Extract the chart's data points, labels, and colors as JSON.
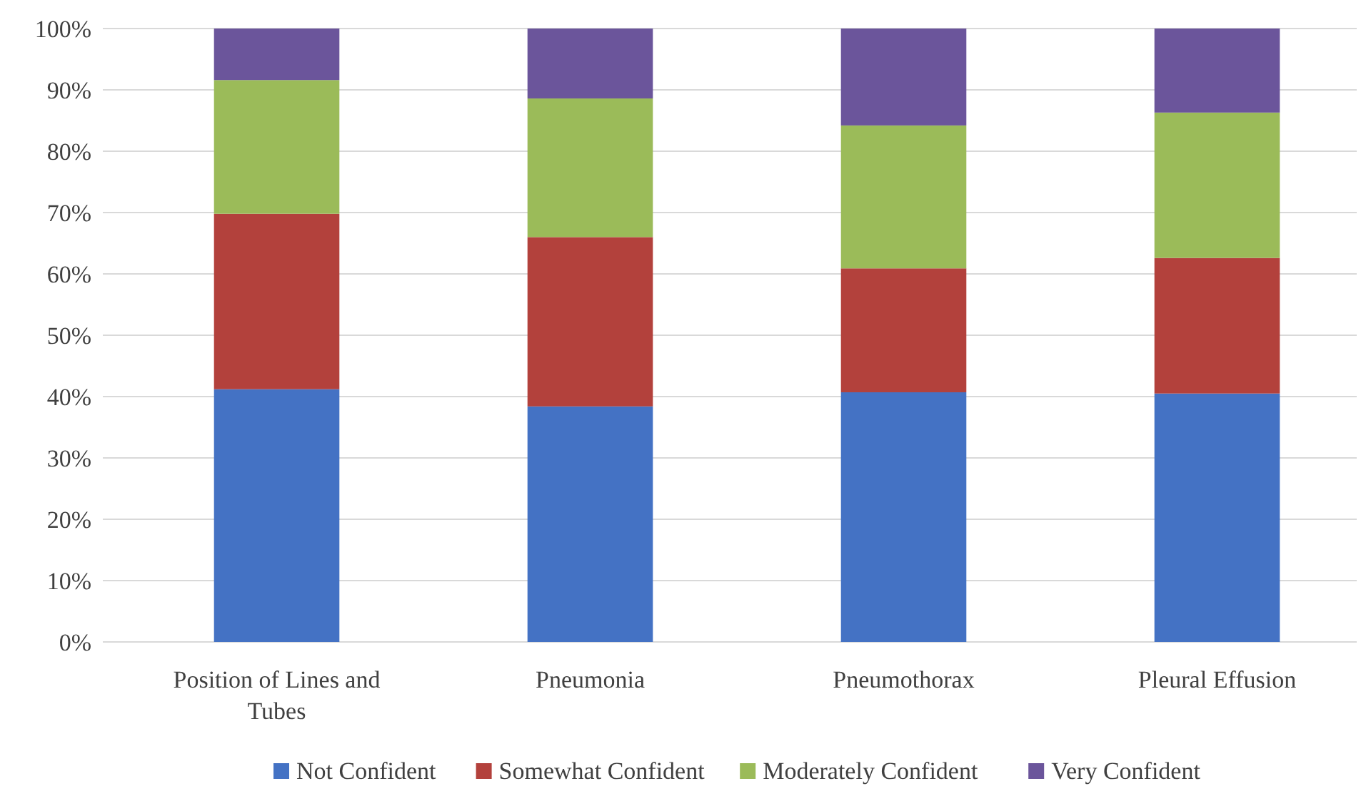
{
  "chart_data": {
    "type": "bar",
    "stacked": true,
    "categories": [
      "Position of Lines and Tubes",
      "Pneumonia",
      "Pneumothorax",
      "Pleural Effusion"
    ],
    "series": [
      {
        "name": "Not Confident",
        "color": "#4472c4",
        "values": [
          41.2,
          38.4,
          40.7,
          40.5
        ]
      },
      {
        "name": "Somewhat Confident",
        "color": "#b3413c",
        "values": [
          28.6,
          27.6,
          20.2,
          22.1
        ]
      },
      {
        "name": "Moderately Confident",
        "color": "#9bbb59",
        "values": [
          21.8,
          22.6,
          23.3,
          23.7
        ]
      },
      {
        "name": "Very Confident",
        "color": "#6b559b",
        "values": [
          8.4,
          11.4,
          15.8,
          13.7
        ]
      }
    ],
    "ylim": [
      0,
      100
    ],
    "yticks": [
      {
        "value": 0,
        "label": "0%"
      },
      {
        "value": 10,
        "label": "10%"
      },
      {
        "value": 20,
        "label": "20%"
      },
      {
        "value": 30,
        "label": "30%"
      },
      {
        "value": 40,
        "label": "40%"
      },
      {
        "value": 50,
        "label": "50%"
      },
      {
        "value": 60,
        "label": "60%"
      },
      {
        "value": 70,
        "label": "70%"
      },
      {
        "value": 80,
        "label": "80%"
      },
      {
        "value": 90,
        "label": "90%"
      },
      {
        "value": 100,
        "label": "100%"
      }
    ],
    "grid": "y",
    "legend": "bottom"
  }
}
